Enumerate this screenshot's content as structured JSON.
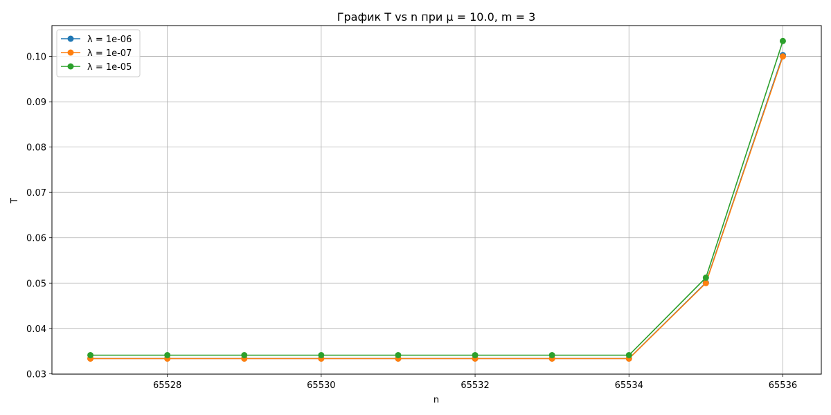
{
  "chart_data": {
    "type": "line",
    "title": "График T vs n при μ = 10.0, m = 3",
    "xlabel": "n",
    "ylabel": "T",
    "xlim": [
      65526.5,
      65536.5
    ],
    "ylim": [
      0.0299,
      0.1068
    ],
    "xticks": [
      65528,
      65530,
      65532,
      65534,
      65536
    ],
    "xtick_labels": [
      "65528",
      "65530",
      "65532",
      "65534",
      "65536"
    ],
    "yticks": [
      0.03,
      0.04,
      0.05,
      0.06,
      0.07,
      0.08,
      0.09,
      0.1
    ],
    "ytick_labels": [
      "0.03",
      "0.04",
      "0.05",
      "0.06",
      "0.07",
      "0.08",
      "0.09",
      "0.10"
    ],
    "grid": true,
    "legend_position": "top-left",
    "x": [
      65527,
      65528,
      65529,
      65530,
      65531,
      65532,
      65533,
      65534,
      65535,
      65536
    ],
    "series": [
      {
        "name": "λ = 1e-06",
        "color": "#1f77b4",
        "values": [
          0.03337,
          0.03337,
          0.03337,
          0.03337,
          0.03337,
          0.03337,
          0.03337,
          0.03337,
          0.0501,
          0.1003
        ]
      },
      {
        "name": "λ = 1e-07",
        "color": "#ff7f0e",
        "values": [
          0.03334,
          0.03334,
          0.03334,
          0.03334,
          0.03334,
          0.03334,
          0.03334,
          0.03334,
          0.05,
          0.1
        ]
      },
      {
        "name": "λ = 1e-05",
        "color": "#2ca02c",
        "values": [
          0.0341,
          0.0341,
          0.0341,
          0.0341,
          0.0341,
          0.0341,
          0.0341,
          0.0341,
          0.0512,
          0.1034
        ]
      }
    ]
  }
}
